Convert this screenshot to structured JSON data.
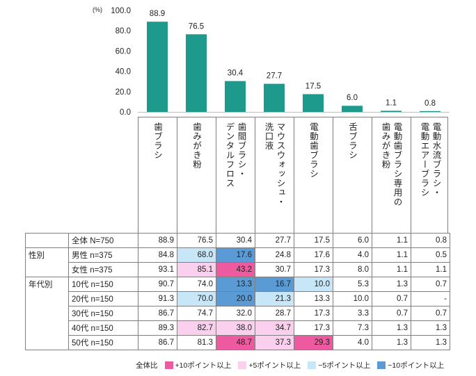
{
  "chart_data": {
    "type": "bar",
    "unit_label": "(%)",
    "ylim": [
      0,
      100
    ],
    "yticks": [
      "0.0",
      "20.0",
      "40.0",
      "60.0",
      "80.0",
      "100.0"
    ],
    "bar_color": "#1e9a8c",
    "categories": [
      {
        "col1": "歯ブラシ",
        "col2": ""
      },
      {
        "col1": "歯みがき粉",
        "col2": ""
      },
      {
        "col1": "歯間ブラシ・",
        "col2": "デンタルフロス"
      },
      {
        "col1": "マウスウォッシュ・",
        "col2": "洗口液"
      },
      {
        "col1": "電動歯ブラシ",
        "col2": ""
      },
      {
        "col1": "舌ブラシ",
        "col2": ""
      },
      {
        "col1": "電動歯ブラシ専用の",
        "col2": "歯みがき粉"
      },
      {
        "col1": "電動水流ブラシ・",
        "col2": "電動エアーブラシ"
      }
    ],
    "values": [
      88.9,
      76.5,
      30.4,
      27.7,
      17.5,
      6.0,
      1.1,
      0.8
    ],
    "value_labels": [
      "88.9",
      "76.5",
      "30.4",
      "27.7",
      "17.5",
      "6.0",
      "1.1",
      "0.8"
    ]
  },
  "table": {
    "rows": [
      {
        "group": "",
        "label": "全体 N=750",
        "values": [
          "88.9",
          "76.5",
          "30.4",
          "27.7",
          "17.5",
          "6.0",
          "1.1",
          "0.8"
        ],
        "hl": [
          "",
          "",
          "",
          "",
          "",
          "",
          "",
          ""
        ]
      },
      {
        "group": "性別",
        "label": "男性 n=375",
        "values": [
          "84.8",
          "68.0",
          "17.6",
          "24.8",
          "17.6",
          "4.0",
          "1.1",
          "0.5"
        ],
        "hl": [
          "",
          "m5",
          "m10",
          "",
          "",
          "",
          "",
          ""
        ]
      },
      {
        "group": "",
        "label": "女性 n=375",
        "values": [
          "93.1",
          "85.1",
          "43.2",
          "30.7",
          "17.3",
          "8.0",
          "1.1",
          "1.1"
        ],
        "hl": [
          "",
          "p5",
          "p10",
          "",
          "",
          "",
          "",
          ""
        ]
      },
      {
        "group": "年代別",
        "label": "10代 n=150",
        "values": [
          "90.7",
          "74.0",
          "13.3",
          "16.7",
          "10.0",
          "5.3",
          "1.3",
          "0.7"
        ],
        "hl": [
          "",
          "",
          "m10",
          "m10",
          "m5",
          "",
          "",
          ""
        ]
      },
      {
        "group": "",
        "label": "20代 n=150",
        "values": [
          "91.3",
          "70.0",
          "20.0",
          "21.3",
          "13.3",
          "10.0",
          "0.7",
          "-"
        ],
        "hl": [
          "",
          "m5",
          "m10",
          "m5",
          "",
          "",
          "",
          ""
        ]
      },
      {
        "group": "",
        "label": "30代 n=150",
        "values": [
          "86.7",
          "74.7",
          "32.0",
          "28.7",
          "17.3",
          "3.3",
          "0.7",
          "0.7"
        ],
        "hl": [
          "",
          "",
          "",
          "",
          "",
          "",
          "",
          ""
        ]
      },
      {
        "group": "",
        "label": "40代 n=150",
        "values": [
          "89.3",
          "82.7",
          "38.0",
          "34.7",
          "17.3",
          "7.3",
          "1.3",
          "1.3"
        ],
        "hl": [
          "",
          "p5",
          "p5",
          "p5",
          "",
          "",
          "",
          ""
        ]
      },
      {
        "group": "",
        "label": "50代 n=150",
        "values": [
          "86.7",
          "81.3",
          "48.7",
          "37.3",
          "29.3",
          "4.0",
          "1.3",
          "1.3"
        ],
        "hl": [
          "",
          "",
          "p10",
          "p5",
          "p10",
          "",
          "",
          ""
        ]
      }
    ],
    "colors": {
      "p10": "#ee5aa0",
      "p5": "#fbd0ef",
      "m5": "#c7e6f7",
      "m10": "#5b9bd5"
    }
  },
  "legend": {
    "prefix": "全体比",
    "items": [
      {
        "key": "p10",
        "label": "+10ポイント以上"
      },
      {
        "key": "p5",
        "label": "+5ポイント以上"
      },
      {
        "key": "m5",
        "label": "−5ポイント以上"
      },
      {
        "key": "m10",
        "label": "−10ポイント以上"
      }
    ]
  }
}
